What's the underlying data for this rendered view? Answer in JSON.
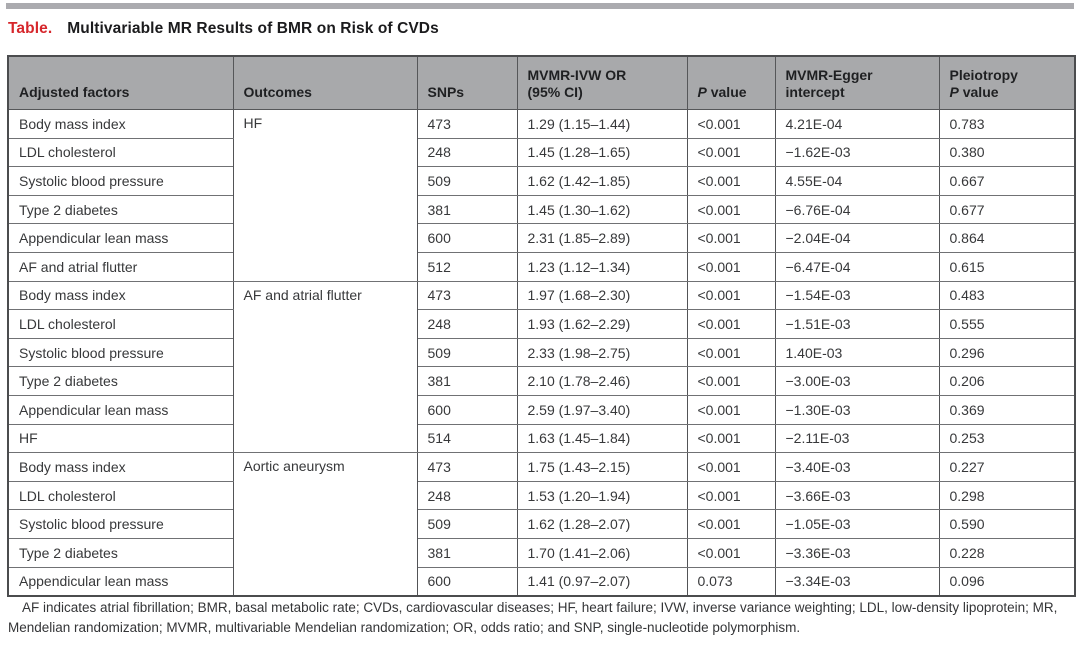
{
  "page": {
    "title_label": "Table.",
    "title_text": "Multivariable MR Results of BMR on Risk of CVDs",
    "accent_red": "#d6262b",
    "header_bg": "#a8a9ab"
  },
  "table": {
    "columns": [
      {
        "id": "adjusted-factors",
        "lines": [
          [
            {
              "t": "Adjusted factors"
            }
          ]
        ]
      },
      {
        "id": "outcomes",
        "lines": [
          [
            {
              "t": "Outcomes"
            }
          ]
        ]
      },
      {
        "id": "snps",
        "lines": [
          [
            {
              "t": "SNPs"
            }
          ]
        ]
      },
      {
        "id": "mvmr-ivw-or",
        "lines": [
          [
            {
              "t": "MVMR-IVW OR"
            }
          ],
          [
            {
              "t": "(95% CI)"
            }
          ]
        ]
      },
      {
        "id": "p-value",
        "lines": [
          [
            {
              "t": "P",
              "i": true
            },
            {
              "t": " value"
            }
          ]
        ]
      },
      {
        "id": "mvmr-egger-intercept",
        "lines": [
          [
            {
              "t": "MVMR-Egger"
            }
          ],
          [
            {
              "t": "intercept"
            }
          ]
        ]
      },
      {
        "id": "pleiotropy-p-value",
        "lines": [
          [
            {
              "t": "Pleiotropy"
            }
          ],
          [
            {
              "t": "P",
              "i": true
            },
            {
              "t": " value"
            }
          ]
        ]
      }
    ],
    "rows": [
      {
        "factor": "Body mass index",
        "outcome": "HF",
        "outcome_span": 6,
        "snps": "473",
        "or_ci": "1.29 (1.15–1.44)",
        "p": "<0.001",
        "intercept": "4.21E-04",
        "pleio_p": "0.783"
      },
      {
        "factor": "LDL cholesterol",
        "snps": "248",
        "or_ci": "1.45 (1.28–1.65)",
        "p": "<0.001",
        "intercept": "−1.62E-03",
        "pleio_p": "0.380"
      },
      {
        "factor": "Systolic blood pressure",
        "snps": "509",
        "or_ci": "1.62 (1.42–1.85)",
        "p": "<0.001",
        "intercept": "4.55E-04",
        "pleio_p": "0.667"
      },
      {
        "factor": "Type 2 diabetes",
        "snps": "381",
        "or_ci": "1.45 (1.30–1.62)",
        "p": "<0.001",
        "intercept": "−6.76E-04",
        "pleio_p": "0.677"
      },
      {
        "factor": "Appendicular lean mass",
        "snps": "600",
        "or_ci": "2.31 (1.85–2.89)",
        "p": "<0.001",
        "intercept": "−2.04E-04",
        "pleio_p": "0.864"
      },
      {
        "factor": "AF and atrial flutter",
        "snps": "512",
        "or_ci": "1.23 (1.12–1.34)",
        "p": "<0.001",
        "intercept": "−6.47E-04",
        "pleio_p": "0.615"
      },
      {
        "factor": "Body mass index",
        "outcome": "AF and atrial flutter",
        "outcome_span": 6,
        "snps": "473",
        "or_ci": "1.97 (1.68–2.30)",
        "p": "<0.001",
        "intercept": "−1.54E-03",
        "pleio_p": "0.483"
      },
      {
        "factor": "LDL cholesterol",
        "snps": "248",
        "or_ci": "1.93 (1.62–2.29)",
        "p": "<0.001",
        "intercept": "−1.51E-03",
        "pleio_p": "0.555"
      },
      {
        "factor": "Systolic blood pressure",
        "snps": "509",
        "or_ci": "2.33 (1.98–2.75)",
        "p": "<0.001",
        "intercept": "1.40E-03",
        "pleio_p": "0.296"
      },
      {
        "factor": "Type 2 diabetes",
        "snps": "381",
        "or_ci": "2.10 (1.78–2.46)",
        "p": "<0.001",
        "intercept": "−3.00E-03",
        "pleio_p": "0.206"
      },
      {
        "factor": "Appendicular lean mass",
        "snps": "600",
        "or_ci": "2.59 (1.97–3.40)",
        "p": "<0.001",
        "intercept": "−1.30E-03",
        "pleio_p": "0.369"
      },
      {
        "factor": "HF",
        "snps": "514",
        "or_ci": "1.63 (1.45–1.84)",
        "p": "<0.001",
        "intercept": "−2.11E-03",
        "pleio_p": "0.253"
      },
      {
        "factor": "Body mass index",
        "outcome": "Aortic aneurysm",
        "outcome_span": 5,
        "snps": "473",
        "or_ci": "1.75 (1.43–2.15)",
        "p": "<0.001",
        "intercept": "−3.40E-03",
        "pleio_p": "0.227"
      },
      {
        "factor": "LDL cholesterol",
        "snps": "248",
        "or_ci": "1.53 (1.20–1.94)",
        "p": "<0.001",
        "intercept": "−3.66E-03",
        "pleio_p": "0.298"
      },
      {
        "factor": "Systolic blood pressure",
        "snps": "509",
        "or_ci": "1.62 (1.28–2.07)",
        "p": "<0.001",
        "intercept": "−1.05E-03",
        "pleio_p": "0.590"
      },
      {
        "factor": "Type 2 diabetes",
        "snps": "381",
        "or_ci": "1.70 (1.41–2.06)",
        "p": "<0.001",
        "intercept": "−3.36E-03",
        "pleio_p": "0.228"
      },
      {
        "factor": "Appendicular lean mass",
        "snps": "600",
        "or_ci": "1.41 (0.97–2.07)",
        "p": "0.073",
        "intercept": "−3.34E-03",
        "pleio_p": "0.096"
      }
    ]
  },
  "footnote": {
    "text": "AF indicates atrial fibrillation; BMR, basal metabolic rate; CVDs, cardiovascular diseases; HF, heart failure; IVW, inverse variance weighting; LDL, low-density lipoprotein; MR, Mendelian randomization; MVMR, multivariable Mendelian randomization; OR, odds ratio; and SNP, single-nucleotide polymorphism."
  }
}
